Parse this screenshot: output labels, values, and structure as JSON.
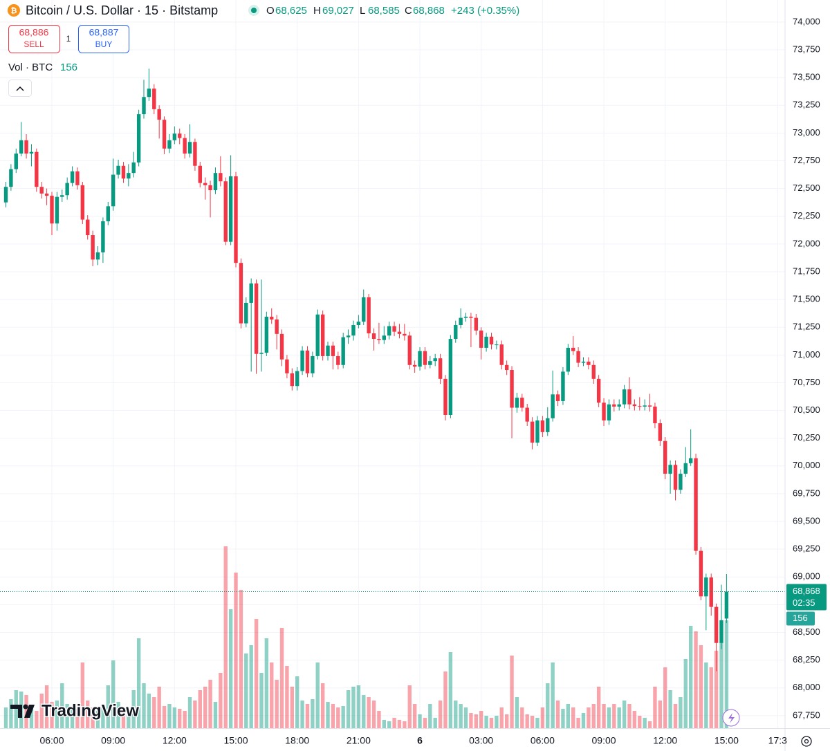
{
  "chart_data": {
    "type": "candlestick",
    "title": "Bitcoin / U.S. Dollar · 15 · Bitstamp",
    "legend": {
      "o_label": "O",
      "o": "68,625",
      "h_label": "H",
      "h": "69,027",
      "l_label": "L",
      "l": "68,585",
      "c_label": "C",
      "c": "68,868",
      "change": "+243 (+0.35%)"
    },
    "up_color": "#089981",
    "down_color": "#f23645",
    "open": [
      72375,
      72515,
      72675,
      72815,
      72935,
      72815,
      72830,
      72515,
      72455,
      72435,
      72185,
      72425,
      72440,
      72550,
      72655,
      72530,
      72220,
      72080,
      71860,
      71925,
      72205,
      72340,
      72625,
      72705,
      72590,
      72640,
      72735,
      73170,
      73325,
      73400,
      73215,
      73120,
      72860,
      72935,
      72995,
      72955,
      72815,
      72920,
      72705,
      72550,
      72530,
      72485,
      72640,
      72565,
      72020,
      72610,
      71830,
      71285,
      71470,
      71645,
      71010,
      71020,
      71345,
      71320,
      71190,
      70960,
      70835,
      70720,
      70855,
      71040,
      70835,
      70990,
      71365,
      70990,
      71085,
      70990,
      70910,
      71160,
      71175,
      71270,
      71300,
      71520,
      71195,
      71145,
      71135,
      71175,
      71260,
      71210,
      71190,
      71175,
      70910,
      70895,
      71035,
      70910,
      70945,
      70970,
      70785,
      70460,
      71145,
      71270,
      71335,
      71345,
      71335,
      71220,
      71065,
      71165,
      71095,
      71095,
      70910,
      70865,
      70525,
      70615,
      70525,
      70400,
      70210,
      70410,
      70305,
      70430,
      70645,
      70585,
      70850,
      71065,
      71035,
      70930,
      70940,
      70910,
      70785,
      70570,
      70410,
      70555,
      70535,
      70555,
      70690,
      70555,
      70540,
      70535,
      70545,
      70535,
      70385,
      70225,
      69930,
      70010,
      69785,
      69930,
      70025,
      70070,
      69235,
      68825,
      68995,
      68730,
      68405,
      68625
    ],
    "high": [
      72560,
      72720,
      72860,
      73100,
      72990,
      72900,
      72860,
      72560,
      72500,
      72470,
      72470,
      72490,
      72600,
      72700,
      72690,
      72560,
      72260,
      72120,
      71980,
      72240,
      72380,
      72770,
      72760,
      72740,
      72720,
      72830,
      73210,
      73480,
      73580,
      73440,
      73250,
      73150,
      72990,
      73060,
      73040,
      72990,
      73080,
      72950,
      72740,
      72600,
      72570,
      72690,
      72790,
      72600,
      72800,
      72650,
      71870,
      71520,
      71690,
      71680,
      71680,
      71390,
      71420,
      71360,
      71230,
      71000,
      70880,
      70890,
      71080,
      71080,
      71030,
      71410,
      71400,
      71120,
      71120,
      71030,
      71200,
      71230,
      71310,
      71360,
      71590,
      71550,
      71240,
      71290,
      71260,
      71300,
      71300,
      71280,
      71280,
      71210,
      70950,
      71070,
      71070,
      70990,
      71010,
      71010,
      70820,
      71180,
      71310,
      71420,
      71380,
      71380,
      71370,
      71250,
      71200,
      71200,
      71130,
      71130,
      70950,
      70900,
      70660,
      70650,
      70560,
      70440,
      70450,
      70450,
      70530,
      70860,
      70680,
      70890,
      71100,
      71170,
      71070,
      70980,
      70980,
      70950,
      70820,
      70610,
      70600,
      70600,
      70600,
      70730,
      70800,
      70600,
      70620,
      70600,
      70650,
      70570,
      70420,
      70260,
      70050,
      70050,
      69970,
      70170,
      70330,
      70110,
      69270,
      69030,
      69030,
      68760,
      68930,
      69027
    ],
    "low": [
      72330,
      72480,
      72640,
      72790,
      72770,
      72700,
      72470,
      72410,
      72350,
      72080,
      72120,
      72380,
      72400,
      72520,
      72490,
      72180,
      72040,
      71800,
      71810,
      71830,
      72170,
      72300,
      72590,
      72550,
      72520,
      72600,
      72700,
      73130,
      73290,
      73170,
      72950,
      72810,
      72820,
      72900,
      72900,
      72770,
      72780,
      72660,
      72510,
      72400,
      72240,
      72450,
      72520,
      71990,
      71990,
      71790,
      71240,
      71250,
      70850,
      70830,
      70850,
      70990,
      71280,
      71050,
      70900,
      70790,
      70680,
      70680,
      70820,
      70800,
      70800,
      70960,
      70950,
      70950,
      70870,
      70870,
      70880,
      71100,
      71130,
      71240,
      71270,
      71150,
      71040,
      71100,
      71100,
      71140,
      71170,
      71150,
      71130,
      70870,
      70840,
      70860,
      70870,
      70880,
      70900,
      70740,
      70410,
      70430,
      71110,
      71240,
      71300,
      71070,
      71180,
      70960,
      71030,
      71050,
      71050,
      70870,
      70820,
      70250,
      70480,
      70490,
      70360,
      70150,
      70180,
      70260,
      70270,
      70400,
      70540,
      70550,
      70820,
      71000,
      70890,
      70900,
      70870,
      70740,
      70530,
      70360,
      70370,
      70490,
      70500,
      70520,
      70510,
      70500,
      70500,
      70500,
      70490,
      70340,
      70180,
      69880,
      69750,
      69690,
      69750,
      69900,
      70000,
      69200,
      68790,
      68520,
      68650,
      68150,
      68350,
      68585
    ],
    "close": [
      72515,
      72675,
      72815,
      72935,
      72815,
      72830,
      72515,
      72455,
      72435,
      72185,
      72425,
      72440,
      72550,
      72655,
      72530,
      72220,
      72080,
      71860,
      71925,
      72205,
      72340,
      72625,
      72705,
      72590,
      72640,
      72735,
      73170,
      73325,
      73400,
      73215,
      73120,
      72860,
      72935,
      72995,
      72955,
      72815,
      72920,
      72705,
      72550,
      72530,
      72485,
      72640,
      72565,
      72020,
      72610,
      71830,
      71285,
      71470,
      71645,
      71010,
      71020,
      71345,
      71320,
      71190,
      70960,
      70835,
      70720,
      70855,
      71040,
      70835,
      70990,
      71365,
      70990,
      71085,
      70990,
      70910,
      71160,
      71175,
      71270,
      71300,
      71520,
      71195,
      71145,
      71135,
      71175,
      71260,
      71210,
      71190,
      71175,
      70910,
      70895,
      71035,
      70910,
      70945,
      70970,
      70785,
      70460,
      71145,
      71270,
      71335,
      71345,
      71335,
      71220,
      71065,
      71165,
      71095,
      71095,
      70910,
      70865,
      70525,
      70615,
      70525,
      70400,
      70210,
      70410,
      70305,
      70430,
      70645,
      70585,
      70850,
      71065,
      71035,
      70930,
      70940,
      70910,
      70785,
      70570,
      70410,
      70555,
      70535,
      70555,
      70690,
      70555,
      70540,
      70535,
      70545,
      70535,
      70385,
      70225,
      69930,
      70010,
      69785,
      69930,
      70025,
      70070,
      69235,
      68825,
      68995,
      68730,
      68405,
      68610,
      68868
    ],
    "volume": [
      30,
      42,
      55,
      53,
      48,
      28,
      25,
      50,
      62,
      38,
      40,
      65,
      35,
      30,
      28,
      95,
      40,
      30,
      25,
      35,
      62,
      98,
      38,
      30,
      25,
      55,
      130,
      65,
      50,
      45,
      60,
      32,
      35,
      30,
      28,
      25,
      45,
      40,
      55,
      60,
      70,
      38,
      80,
      263,
      172,
      225,
      200,
      108,
      120,
      158,
      80,
      130,
      95,
      70,
      145,
      90,
      60,
      75,
      40,
      35,
      42,
      95,
      65,
      38,
      35,
      30,
      32,
      55,
      60,
      62,
      48,
      45,
      40,
      25,
      12,
      10,
      15,
      12,
      10,
      62,
      35,
      20,
      15,
      35,
      15,
      40,
      82,
      110,
      40,
      35,
      30,
      22,
      20,
      25,
      18,
      15,
      18,
      30,
      20,
      105,
      45,
      30,
      20,
      18,
      15,
      30,
      65,
      95,
      40,
      28,
      35,
      30,
      15,
      22,
      30,
      35,
      60,
      35,
      30,
      35,
      30,
      40,
      35,
      25,
      18,
      15,
      10,
      60,
      40,
      88,
      55,
      35,
      45,
      100,
      148,
      140,
      120,
      95,
      88,
      112,
      125,
      156
    ],
    "xlim": [
      -1.15,
      152.45
    ],
    "xticks": [
      {
        "value": 9,
        "label": "06:00"
      },
      {
        "value": 21,
        "label": "09:00"
      },
      {
        "value": 33,
        "label": "12:00"
      },
      {
        "value": 45,
        "label": "15:00"
      },
      {
        "value": 57,
        "label": "18:00"
      },
      {
        "value": 69,
        "label": "21:00"
      },
      {
        "value": 81,
        "label": "6"
      },
      {
        "value": 93,
        "label": "03:00"
      },
      {
        "value": 105,
        "label": "06:00"
      },
      {
        "value": 117,
        "label": "09:00"
      },
      {
        "value": 129,
        "label": "12:00"
      },
      {
        "value": 141,
        "label": "15:00"
      },
      {
        "value": 151,
        "label": "17:3"
      }
    ],
    "ylim": [
      67637,
      74199
    ],
    "yticks": [
      {
        "value": 67750,
        "label": "67,750"
      },
      {
        "value": 68000,
        "label": "68,000"
      },
      {
        "value": 68250,
        "label": "68,250"
      },
      {
        "value": 68500,
        "label": "68,500"
      },
      {
        "value": 68750,
        "label": "68,750"
      },
      {
        "value": 69000,
        "label": "69,000"
      },
      {
        "value": 69250,
        "label": "69,250"
      },
      {
        "value": 69500,
        "label": "69,500"
      },
      {
        "value": 69750,
        "label": "69,750"
      },
      {
        "value": 70000,
        "label": "70,000"
      },
      {
        "value": 70250,
        "label": "70,250"
      },
      {
        "value": 70500,
        "label": "70,500"
      },
      {
        "value": 70750,
        "label": "70,750"
      },
      {
        "value": 71000,
        "label": "71,000"
      },
      {
        "value": 71250,
        "label": "71,250"
      },
      {
        "value": 71500,
        "label": "71,500"
      },
      {
        "value": 71750,
        "label": "71,750"
      },
      {
        "value": 72000,
        "label": "72,000"
      },
      {
        "value": 72250,
        "label": "72,250"
      },
      {
        "value": 72500,
        "label": "72,500"
      },
      {
        "value": 72750,
        "label": "72,750"
      },
      {
        "value": 73000,
        "label": "73,000"
      },
      {
        "value": 73250,
        "label": "73,250"
      },
      {
        "value": 73500,
        "label": "73,500"
      },
      {
        "value": 73750,
        "label": "73,750"
      },
      {
        "value": 74000,
        "label": "74,000"
      }
    ],
    "grid": true,
    "last_price": {
      "label": "68,868",
      "countdown": "02:35"
    },
    "volume_label": "Vol · BTC"
  },
  "toolbar": {
    "sell_price": "68,886",
    "sell": "SELL",
    "quantity": "1",
    "buy_price": "68,887",
    "buy": "BUY"
  },
  "branding": "TradingView"
}
